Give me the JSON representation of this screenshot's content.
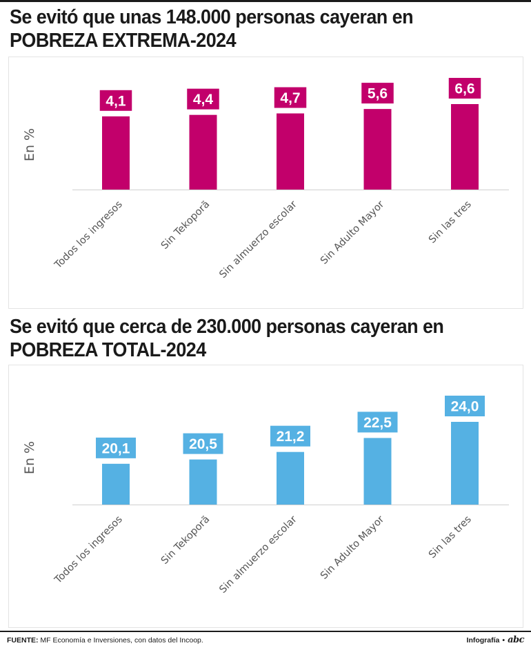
{
  "charts": [
    {
      "title_line1": "Se evitó que unas 148.000 personas cayeran en",
      "title_line2": "POBREZA EXTREMA-2024"
    },
    {
      "title_line1": "Se evitó que cerca de 230.000 personas cayeran en",
      "title_line2": "POBREZA TOTAL-2024"
    }
  ],
  "chart_data": [
    {
      "type": "bar",
      "title": "Se evitó que unas 148.000 personas cayeran en POBREZA EXTREMA-2024",
      "categories": [
        "Todos los ingresos",
        "Sin Tekoporã",
        "Sin almuerzo escolar",
        "Sin Adulto Mayor",
        "Sin las tres"
      ],
      "values": [
        4.1,
        4.4,
        4.7,
        5.6,
        6.6
      ],
      "value_labels": [
        "4,1",
        "4,4",
        "4,7",
        "5,6",
        "6,6"
      ],
      "ylabel": "En %",
      "xlabel": "",
      "ylim": [
        0,
        6.6
      ],
      "color": "#c2006b",
      "grid": false
    },
    {
      "type": "bar",
      "title": "Se evitó que cerca de 230.000 personas cayeran en POBREZA TOTAL-2024",
      "categories": [
        "Todos los ingresos",
        "Sin Tekoporã",
        "Sin almuerzo escolar",
        "Sin Adulto Mayor",
        "Sin las tres"
      ],
      "values": [
        20.1,
        20.5,
        21.2,
        22.5,
        24.0
      ],
      "value_labels": [
        "20,1",
        "20,5",
        "21,2",
        "22,5",
        "24,0"
      ],
      "ylabel": "En %",
      "xlabel": "",
      "ylim": [
        19.0,
        24.0
      ],
      "color": "#55b1e3",
      "grid": false
    }
  ],
  "footer": {
    "source_label": "FUENTE:",
    "source_text": "MF Economía e Inversiones, con datos del Incoop.",
    "credit": "Infografía",
    "bullet": "•",
    "logo": "abc"
  }
}
